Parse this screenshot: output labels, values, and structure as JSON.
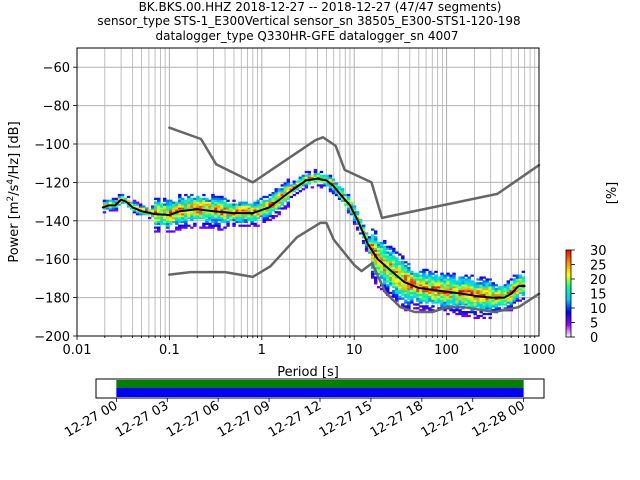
{
  "title": {
    "line1": "BK.BKS.00.HHZ   2018-12-27 -- 2018-12-27  (47/47 segments)",
    "line2": "sensor_type STS-1_E300Vertical sensor_sn 38505_E300-STS1-120-198",
    "line3": "datalogger_type Q330HR-GFE datalogger_sn 4007"
  },
  "chart_data": {
    "type": "heatmap",
    "xlabel": "Period [s]",
    "ylabel": "Power [m²/s⁴/Hz] [dB]",
    "x_scale": "log",
    "xlim": [
      0.01,
      1000
    ],
    "ylim": [
      -200,
      -50
    ],
    "grid": true,
    "x_ticks": [
      {
        "value": 0.01,
        "label": "0.01"
      },
      {
        "value": 0.1,
        "label": "0.1"
      },
      {
        "value": 1,
        "label": "1"
      },
      {
        "value": 10,
        "label": "10"
      },
      {
        "value": 100,
        "label": "100"
      },
      {
        "value": 1000,
        "label": "1000"
      }
    ],
    "y_ticks": [
      {
        "value": -60,
        "label": "−60"
      },
      {
        "value": -80,
        "label": "−80"
      },
      {
        "value": -100,
        "label": "−100"
      },
      {
        "value": -120,
        "label": "−120"
      },
      {
        "value": -140,
        "label": "−140"
      },
      {
        "value": -160,
        "label": "−160"
      },
      {
        "value": -180,
        "label": "−180"
      },
      {
        "value": -200,
        "label": "−200"
      }
    ],
    "noise_model_high": {
      "x": [
        0.1,
        0.22,
        0.32,
        0.8,
        3.8,
        4.6,
        6.3,
        7.9,
        15.4,
        20,
        354.8,
        1000
      ],
      "y": [
        -91.5,
        -97.4,
        -110.5,
        -120,
        -98,
        -96.5,
        -101,
        -113.5,
        -120,
        -138.5,
        -126,
        -111
      ]
    },
    "noise_model_low": {
      "x": [
        0.1,
        0.17,
        0.4,
        0.8,
        1.24,
        2.4,
        4.3,
        5.0,
        6.0,
        10.0,
        12.0,
        15.6,
        21.9,
        31.6,
        45,
        70,
        101,
        154,
        328,
        600,
        1000
      ],
      "y": [
        -168,
        -166.7,
        -166.7,
        -169.2,
        -163.7,
        -148.6,
        -141.1,
        -141.1,
        -149.8,
        -163,
        -166.2,
        -162.1,
        -177.5,
        -185,
        -187.5,
        -187.5,
        -185,
        -185,
        -187.5,
        -185,
        -178
      ]
    },
    "mean_curve": {
      "x": [
        0.019,
        0.022,
        0.026,
        0.03,
        0.034,
        0.04,
        0.05,
        0.07,
        0.1,
        0.13,
        0.2,
        0.3,
        0.5,
        0.8,
        1.2,
        2,
        3,
        4,
        5,
        6,
        7,
        9,
        11,
        14,
        18,
        25,
        35,
        50,
        70,
        100,
        150,
        200,
        300,
        420,
        500,
        600,
        700
      ],
      "y": [
        -133,
        -132,
        -132,
        -129,
        -130,
        -133,
        -135,
        -136.5,
        -137,
        -135,
        -134,
        -135,
        -136,
        -136,
        -133,
        -125,
        -119,
        -118,
        -119,
        -122,
        -126,
        -132,
        -140,
        -152,
        -160,
        -166,
        -172,
        -175,
        -176,
        -177,
        -178,
        -179,
        -180,
        -180,
        -178,
        -174,
        -174
      ]
    },
    "colorbar": {
      "min": 0,
      "max": 30,
      "ticks": [
        "0",
        "5",
        "10",
        "15",
        "20",
        "25",
        "30"
      ],
      "label": "[%]",
      "colors": [
        "#ffffff",
        "#9c00ff",
        "#0000ff",
        "#00c8ff",
        "#00ff9c",
        "#ffff00",
        "#ff8c00",
        "#ff0000"
      ]
    },
    "time_axis": {
      "tick_labels": [
        "12-27 00",
        "12-27 03",
        "12-27 06",
        "12-27 09",
        "12-27 12",
        "12-27 15",
        "12-27 18",
        "12-27 21",
        "12-28 00"
      ],
      "span_hours": [
        0,
        24
      ],
      "view_hours": [
        -1.2,
        25.2
      ],
      "band_colors": [
        "#008000",
        "#0000ff"
      ]
    },
    "colors": {
      "noise_model": "#666666",
      "mean_curve": "#000000",
      "grid": "#b0b0b0"
    }
  }
}
